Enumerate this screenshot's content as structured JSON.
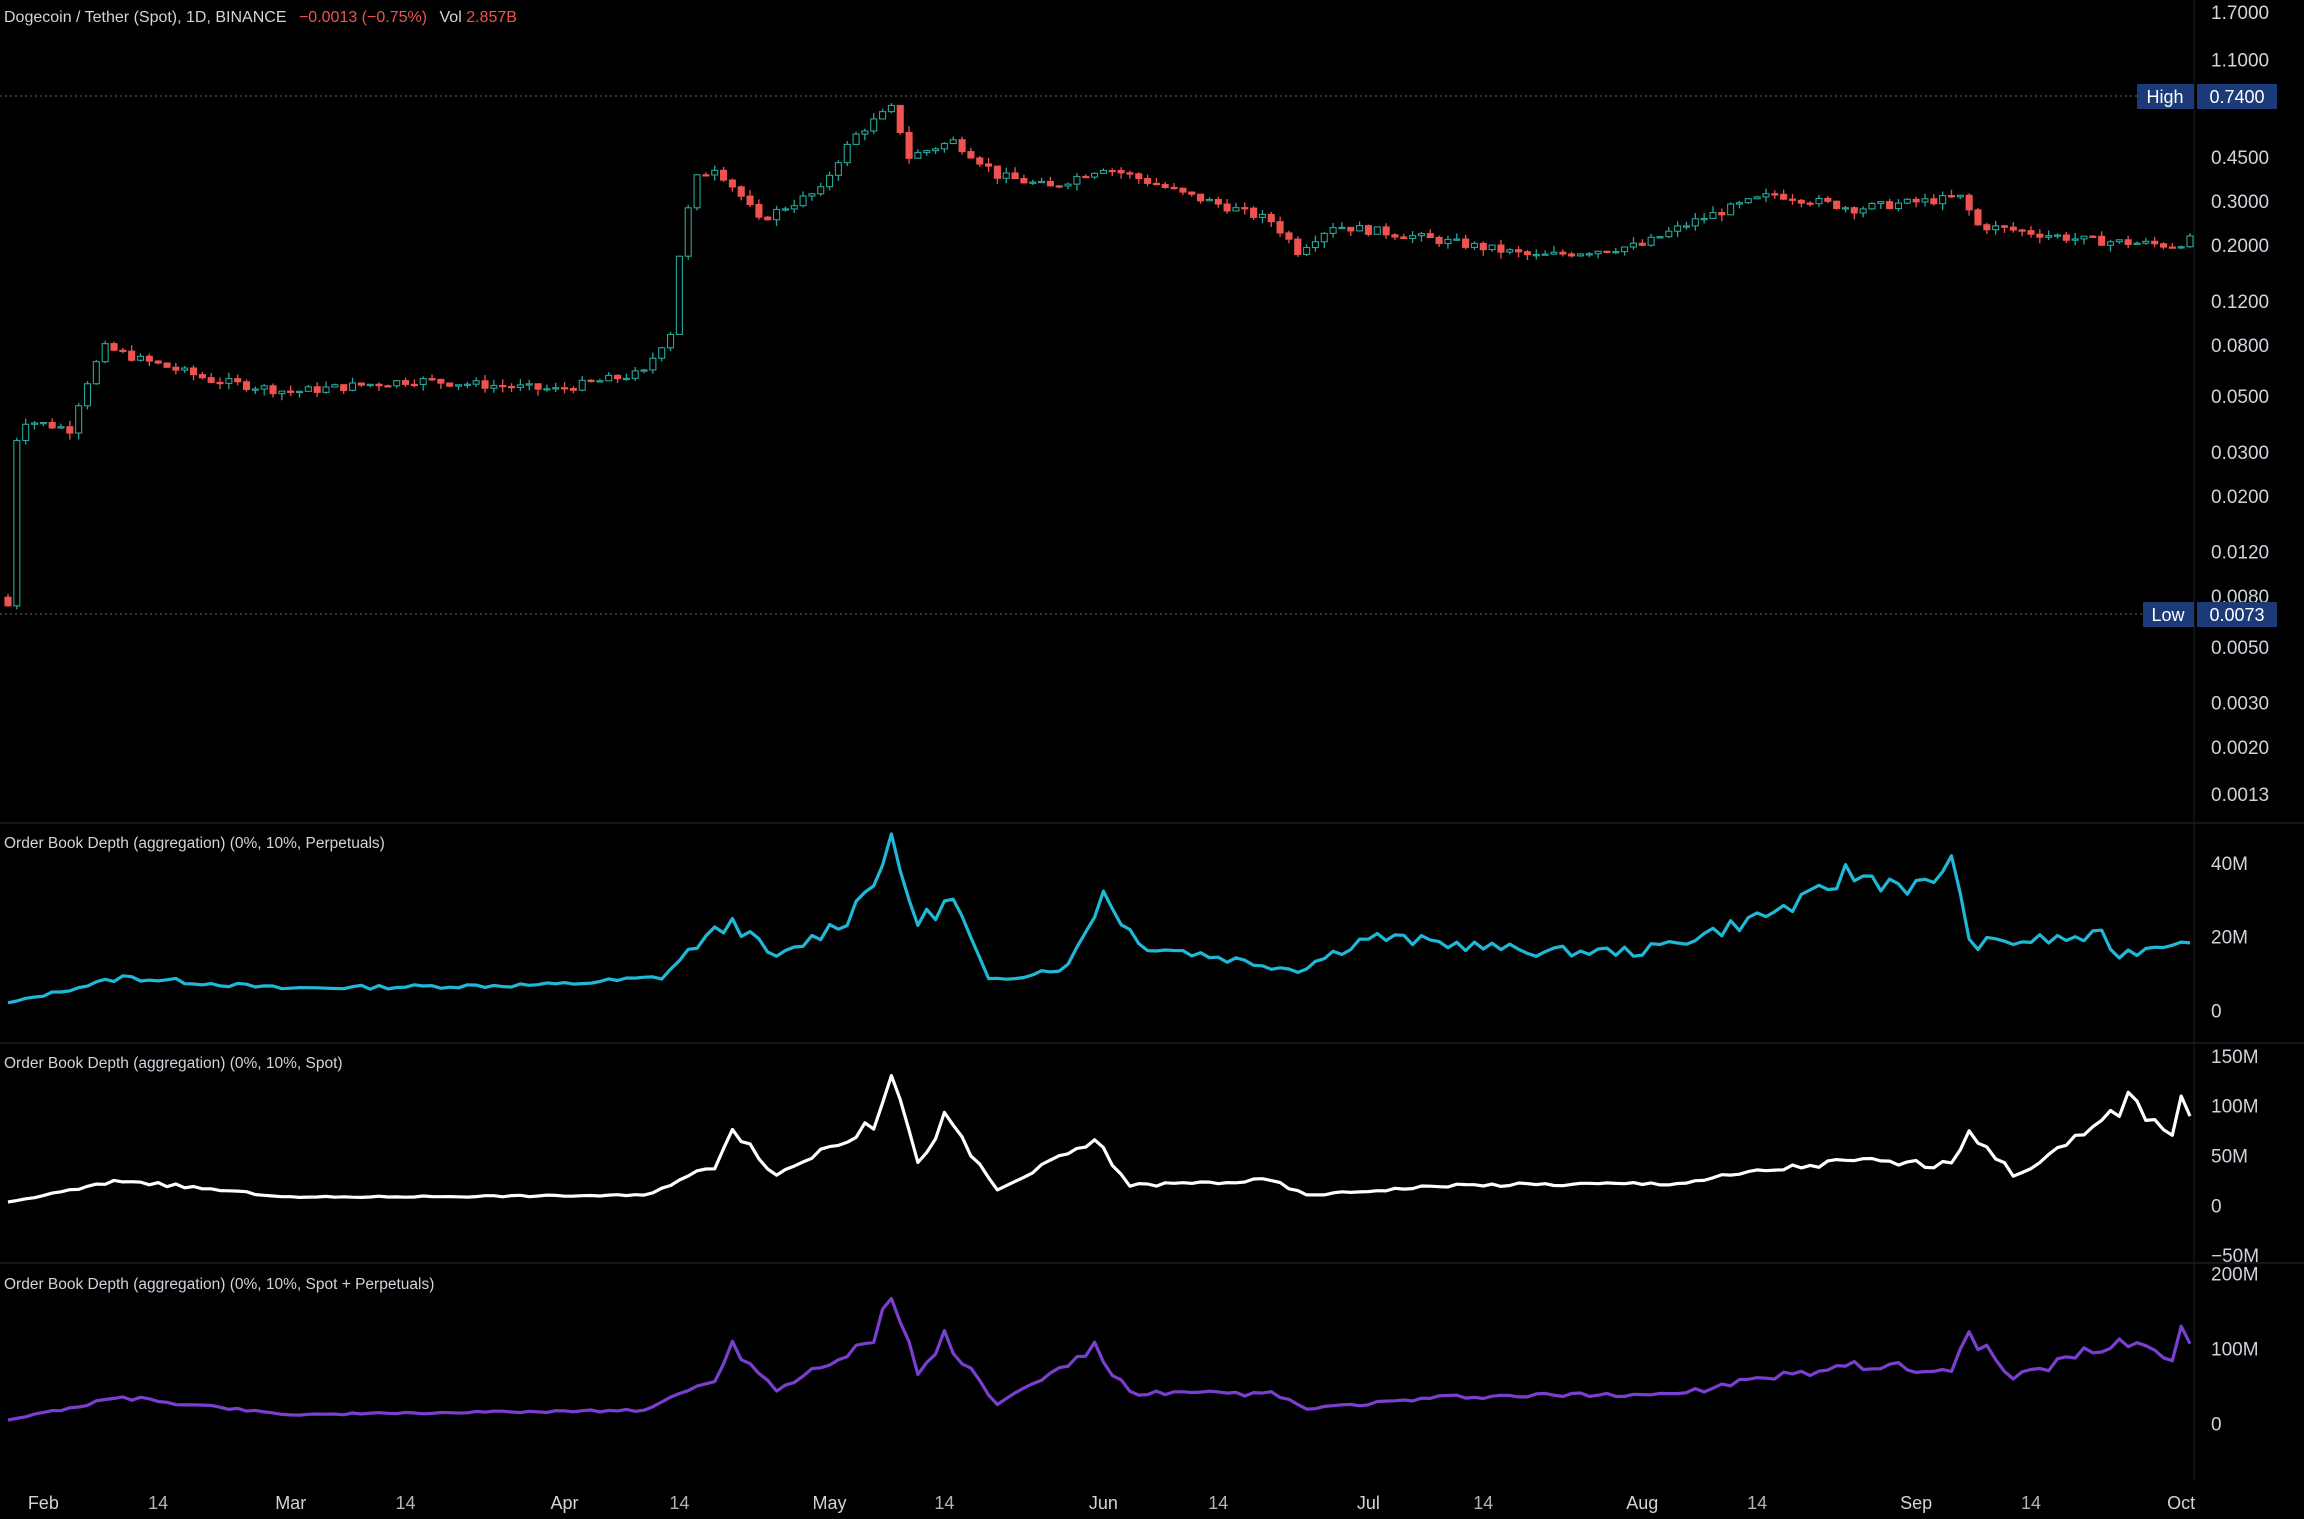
{
  "header": {
    "symbol": "Dogecoin / Tether (Spot), 1D, BINANCE",
    "change": "−0.0013 (−0.75%)",
    "vol_label": "Vol",
    "vol_value": "2.857B"
  },
  "colors": {
    "up": "#26a69a",
    "down": "#ef5350",
    "perp": "#1fb8d6",
    "spot": "#ffffff",
    "combined": "#7a3fd0",
    "tag": "#1c3a78"
  },
  "price_axis": {
    "scale": "log",
    "ticks": [
      "1.7000",
      "1.1000",
      "0.4500",
      "0.3000",
      "0.2000",
      "0.1200",
      "0.0800",
      "0.0500",
      "0.0300",
      "0.0200",
      "0.0120",
      "0.0080",
      "0.0050",
      "0.0030",
      "0.0020",
      "0.0013"
    ],
    "high_label": "High",
    "high_value": "0.7400",
    "low_label": "Low",
    "low_value": "0.0073"
  },
  "x_axis": {
    "labels": [
      "Feb",
      "14",
      "Mar",
      "14",
      "Apr",
      "14",
      "May",
      "14",
      "Jun",
      "14",
      "Jul",
      "14",
      "Aug",
      "14",
      "Sep",
      "14",
      "Oct"
    ]
  },
  "panes": [
    {
      "title": "Order Book Depth (aggregation) (0%, 10%, Perpetuals)",
      "ticks": [
        "40M",
        "20M",
        "0"
      ]
    },
    {
      "title": "Order Book Depth (aggregation) (0%, 10%, Spot)",
      "ticks": [
        "150M",
        "100M",
        "50M",
        "0",
        "−50M"
      ]
    },
    {
      "title": "Order Book Depth (aggregation) (0%, 10%, Spot + Perpetuals)",
      "ticks": [
        "200M",
        "100M",
        "0"
      ]
    }
  ],
  "chart_data": [
    {
      "type": "candlestick",
      "title": "Dogecoin / Tether (Spot), 1D, BINANCE",
      "y_scale": "log",
      "ylim": [
        0.0011,
        1.9
      ],
      "x_range": [
        "2021-01-28",
        "2021-10-02"
      ],
      "price_keypoints": [
        {
          "date": "2021-01-28",
          "close": 0.0073
        },
        {
          "date": "2021-01-29",
          "close": 0.034
        },
        {
          "date": "2021-01-30",
          "close": 0.04
        },
        {
          "date": "2021-02-04",
          "close": 0.037
        },
        {
          "date": "2021-02-08",
          "close": 0.078
        },
        {
          "date": "2021-02-12",
          "close": 0.07
        },
        {
          "date": "2021-02-20",
          "close": 0.058
        },
        {
          "date": "2021-03-01",
          "close": 0.052
        },
        {
          "date": "2021-03-15",
          "close": 0.058
        },
        {
          "date": "2021-03-31",
          "close": 0.053
        },
        {
          "date": "2021-04-10",
          "close": 0.062
        },
        {
          "date": "2021-04-13",
          "close": 0.09
        },
        {
          "date": "2021-04-16",
          "close": 0.37
        },
        {
          "date": "2021-04-18",
          "close": 0.41
        },
        {
          "date": "2021-04-23",
          "close": 0.25
        },
        {
          "date": "2021-04-30",
          "close": 0.33
        },
        {
          "date": "2021-05-04",
          "close": 0.55
        },
        {
          "date": "2021-05-08",
          "close": 0.7
        },
        {
          "date": "2021-05-10",
          "close": 0.45
        },
        {
          "date": "2021-05-15",
          "close": 0.52
        },
        {
          "date": "2021-05-20",
          "close": 0.38
        },
        {
          "date": "2021-05-26",
          "close": 0.34
        },
        {
          "date": "2021-06-01",
          "close": 0.41
        },
        {
          "date": "2021-06-10",
          "close": 0.32
        },
        {
          "date": "2021-06-20",
          "close": 0.25
        },
        {
          "date": "2021-06-23",
          "close": 0.19
        },
        {
          "date": "2021-06-27",
          "close": 0.24
        },
        {
          "date": "2021-07-05",
          "close": 0.22
        },
        {
          "date": "2021-07-20",
          "close": 0.18
        },
        {
          "date": "2021-08-01",
          "close": 0.2
        },
        {
          "date": "2021-08-07",
          "close": 0.25
        },
        {
          "date": "2021-08-16",
          "close": 0.32
        },
        {
          "date": "2021-08-25",
          "close": 0.28
        },
        {
          "date": "2021-09-06",
          "close": 0.31
        },
        {
          "date": "2021-09-08",
          "close": 0.24
        },
        {
          "date": "2021-09-20",
          "close": 0.21
        },
        {
          "date": "2021-09-30",
          "close": 0.2
        },
        {
          "date": "2021-10-02",
          "close": 0.21
        }
      ],
      "high": 0.74,
      "low": 0.0073
    },
    {
      "type": "line",
      "title": "Order Book Depth (aggregation) (0%, 10%, Perpetuals)",
      "ylim": [
        -8,
        50
      ],
      "unit": "M",
      "keypoints": [
        {
          "date": "2021-01-28",
          "value": 2
        },
        {
          "date": "2021-02-10",
          "value": 9
        },
        {
          "date": "2021-02-28",
          "value": 6
        },
        {
          "date": "2021-03-31",
          "value": 7
        },
        {
          "date": "2021-04-12",
          "value": 9
        },
        {
          "date": "2021-04-16",
          "value": 18
        },
        {
          "date": "2021-04-20",
          "value": 24
        },
        {
          "date": "2021-04-25",
          "value": 14
        },
        {
          "date": "2021-05-03",
          "value": 25
        },
        {
          "date": "2021-05-08",
          "value": 44
        },
        {
          "date": "2021-05-11",
          "value": 24
        },
        {
          "date": "2021-05-15",
          "value": 30
        },
        {
          "date": "2021-05-19",
          "value": 8
        },
        {
          "date": "2021-05-28",
          "value": 12
        },
        {
          "date": "2021-06-01",
          "value": 32
        },
        {
          "date": "2021-06-05",
          "value": 18
        },
        {
          "date": "2021-06-23",
          "value": 11
        },
        {
          "date": "2021-07-01",
          "value": 20
        },
        {
          "date": "2021-07-20",
          "value": 16
        },
        {
          "date": "2021-08-01",
          "value": 16
        },
        {
          "date": "2021-08-10",
          "value": 22
        },
        {
          "date": "2021-08-20",
          "value": 30
        },
        {
          "date": "2021-08-24",
          "value": 37
        },
        {
          "date": "2021-09-03",
          "value": 33
        },
        {
          "date": "2021-09-05",
          "value": 44
        },
        {
          "date": "2021-09-07",
          "value": 18
        },
        {
          "date": "2021-09-22",
          "value": 20
        },
        {
          "date": "2021-09-24",
          "value": 15
        },
        {
          "date": "2021-10-02",
          "value": 20
        }
      ]
    },
    {
      "type": "line",
      "title": "Order Book Depth (aggregation) (0%, 10%, Spot)",
      "ylim": [
        -55,
        160
      ],
      "unit": "M",
      "keypoints": [
        {
          "date": "2021-01-28",
          "value": 3
        },
        {
          "date": "2021-02-10",
          "value": 25
        },
        {
          "date": "2021-03-01",
          "value": 8
        },
        {
          "date": "2021-04-10",
          "value": 10
        },
        {
          "date": "2021-04-18",
          "value": 40
        },
        {
          "date": "2021-04-20",
          "value": 80
        },
        {
          "date": "2021-04-25",
          "value": 30
        },
        {
          "date": "2021-05-01",
          "value": 60
        },
        {
          "date": "2021-05-06",
          "value": 80
        },
        {
          "date": "2021-05-08",
          "value": 140
        },
        {
          "date": "2021-05-11",
          "value": 40
        },
        {
          "date": "2021-05-14",
          "value": 88
        },
        {
          "date": "2021-05-20",
          "value": 15
        },
        {
          "date": "2021-05-31",
          "value": 65
        },
        {
          "date": "2021-06-04",
          "value": 20
        },
        {
          "date": "2021-06-20",
          "value": 25
        },
        {
          "date": "2021-06-24",
          "value": 10
        },
        {
          "date": "2021-07-10",
          "value": 20
        },
        {
          "date": "2021-08-05",
          "value": 22
        },
        {
          "date": "2021-08-15",
          "value": 35
        },
        {
          "date": "2021-08-25",
          "value": 45
        },
        {
          "date": "2021-09-05",
          "value": 40
        },
        {
          "date": "2021-09-07",
          "value": 78
        },
        {
          "date": "2021-09-12",
          "value": 30
        },
        {
          "date": "2021-09-20",
          "value": 70
        },
        {
          "date": "2021-09-25",
          "value": 105
        },
        {
          "date": "2021-09-30",
          "value": 75
        },
        {
          "date": "2021-10-01",
          "value": 110
        },
        {
          "date": "2021-10-02",
          "value": 95
        }
      ]
    },
    {
      "type": "line",
      "title": "Order Book Depth (aggregation) (0%, 10%, Spot + Perpetuals)",
      "ylim": [
        -75,
        210
      ],
      "unit": "M",
      "keypoints": [
        {
          "date": "2021-01-28",
          "value": 5
        },
        {
          "date": "2021-02-10",
          "value": 35
        },
        {
          "date": "2021-03-01",
          "value": 12
        },
        {
          "date": "2021-04-10",
          "value": 18
        },
        {
          "date": "2021-04-18",
          "value": 60
        },
        {
          "date": "2021-04-20",
          "value": 105
        },
        {
          "date": "2021-04-25",
          "value": 45
        },
        {
          "date": "2021-05-01",
          "value": 85
        },
        {
          "date": "2021-05-06",
          "value": 110
        },
        {
          "date": "2021-05-08",
          "value": 175
        },
        {
          "date": "2021-05-11",
          "value": 65
        },
        {
          "date": "2021-05-14",
          "value": 115
        },
        {
          "date": "2021-05-20",
          "value": 25
        },
        {
          "date": "2021-05-31",
          "value": 100
        },
        {
          "date": "2021-06-04",
          "value": 40
        },
        {
          "date": "2021-06-20",
          "value": 40
        },
        {
          "date": "2021-06-24",
          "value": 20
        },
        {
          "date": "2021-07-10",
          "value": 35
        },
        {
          "date": "2021-08-05",
          "value": 40
        },
        {
          "date": "2021-08-15",
          "value": 60
        },
        {
          "date": "2021-08-25",
          "value": 80
        },
        {
          "date": "2021-09-05",
          "value": 70
        },
        {
          "date": "2021-09-07",
          "value": 120
        },
        {
          "date": "2021-09-12",
          "value": 60
        },
        {
          "date": "2021-09-20",
          "value": 95
        },
        {
          "date": "2021-09-25",
          "value": 110
        },
        {
          "date": "2021-09-30",
          "value": 90
        },
        {
          "date": "2021-10-01",
          "value": 125
        },
        {
          "date": "2021-10-02",
          "value": 110
        }
      ]
    }
  ]
}
